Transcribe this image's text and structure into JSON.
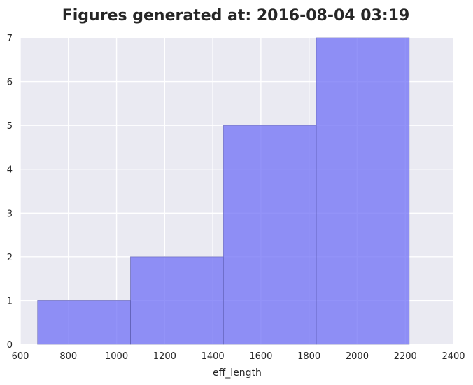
{
  "chart_data": {
    "type": "bar",
    "title": "Figures generated at: 2016-08-04 03:19",
    "xlabel": "eff_length",
    "ylabel": "",
    "xlim": [
      600,
      2400
    ],
    "ylim": [
      0,
      7
    ],
    "x_ticks": [
      "600",
      "800",
      "1000",
      "1200",
      "1400",
      "1600",
      "1800",
      "2000",
      "2200",
      "2400"
    ],
    "y_ticks": [
      "0",
      "1",
      "2",
      "3",
      "4",
      "5",
      "6",
      "7"
    ],
    "bins": [
      {
        "start": 672,
        "end": 1058,
        "value": 1
      },
      {
        "start": 1058,
        "end": 1444,
        "value": 2
      },
      {
        "start": 1444,
        "end": 1830,
        "value": 5
      },
      {
        "start": 1830,
        "end": 2216,
        "value": 7
      }
    ],
    "grid": true,
    "bar_color": "#6f6ff5",
    "background_color": "#eaeaf2"
  }
}
